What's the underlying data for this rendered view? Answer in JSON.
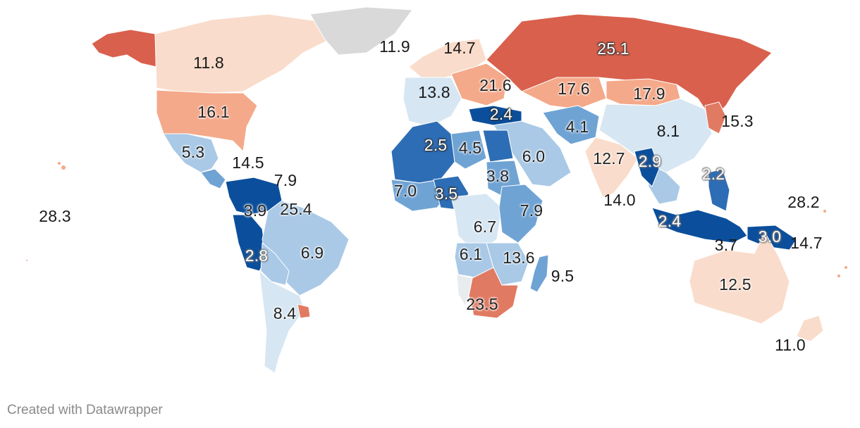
{
  "palette": {
    "blue_darkest": "#0b4f9c",
    "blue_dark": "#2d6db5",
    "blue_mid": "#6fa3d4",
    "blue_light": "#a9c9e6",
    "blue_pale": "#d6e6f2",
    "grey_neutral": "#e8ecef",
    "salmon_pale": "#f9dccb",
    "salmon_light": "#f4a98a",
    "red_mid": "#e07a62",
    "red_dark": "#d9604d",
    "no_data": "#d9d9d9"
  },
  "regions": [
    {
      "name": "alaska",
      "color": "red_dark"
    },
    {
      "name": "canada",
      "color": "salmon_pale"
    },
    {
      "name": "greenland",
      "color": "no_data"
    },
    {
      "name": "usa",
      "color": "salmon_light"
    },
    {
      "name": "mexico",
      "color": "blue_light"
    },
    {
      "name": "central-america",
      "color": "blue_mid"
    },
    {
      "name": "venezuela-colombia",
      "color": "blue_darkest"
    },
    {
      "name": "peru-ecuador",
      "color": "blue_darkest"
    },
    {
      "name": "brazil",
      "color": "blue_light"
    },
    {
      "name": "bolivia-paraguay",
      "color": "blue_light"
    },
    {
      "name": "argentina-chile",
      "color": "blue_pale"
    },
    {
      "name": "uruguay",
      "color": "red_mid"
    },
    {
      "name": "iceland-scandinavia",
      "color": "salmon_pale"
    },
    {
      "name": "western-europe",
      "color": "blue_pale"
    },
    {
      "name": "eastern-europe",
      "color": "salmon_light"
    },
    {
      "name": "russia",
      "color": "red_dark"
    },
    {
      "name": "kazakhstan",
      "color": "salmon_light"
    },
    {
      "name": "mongolia",
      "color": "salmon_light"
    },
    {
      "name": "china",
      "color": "blue_pale"
    },
    {
      "name": "korea-japan",
      "color": "red_mid"
    },
    {
      "name": "turkey",
      "color": "blue_darkest"
    },
    {
      "name": "middle-east",
      "color": "blue_light"
    },
    {
      "name": "iran-afghanistan",
      "color": "blue_mid"
    },
    {
      "name": "india",
      "color": "salmon_pale"
    },
    {
      "name": "southeast-asia",
      "color": "blue_light"
    },
    {
      "name": "myanmar",
      "color": "blue_darkest"
    },
    {
      "name": "philippines",
      "color": "blue_dark"
    },
    {
      "name": "indonesia",
      "color": "blue_darkest"
    },
    {
      "name": "png",
      "color": "blue_darkest"
    },
    {
      "name": "australia",
      "color": "salmon_pale"
    },
    {
      "name": "new-zealand",
      "color": "salmon_pale"
    },
    {
      "name": "north-africa-west",
      "color": "blue_dark"
    },
    {
      "name": "libya",
      "color": "blue_mid"
    },
    {
      "name": "egypt",
      "color": "blue_dark"
    },
    {
      "name": "sudan",
      "color": "blue_mid"
    },
    {
      "name": "west-africa",
      "color": "blue_mid"
    },
    {
      "name": "nigeria",
      "color": "blue_dark"
    },
    {
      "name": "central-africa",
      "color": "blue_pale"
    },
    {
      "name": "east-africa",
      "color": "blue_mid"
    },
    {
      "name": "southern-central-africa",
      "color": "blue_light"
    },
    {
      "name": "mozambique-zambia",
      "color": "blue_light"
    },
    {
      "name": "southern-africa",
      "color": "red_mid"
    },
    {
      "name": "namibia",
      "color": "grey_neutral"
    },
    {
      "name": "madagascar",
      "color": "blue_mid"
    }
  ],
  "labels": [
    {
      "id": "canada",
      "text": "11.8",
      "style": "plain"
    },
    {
      "id": "greenland",
      "text": "11.9",
      "style": "plain"
    },
    {
      "id": "scandinavia",
      "text": "14.7",
      "style": "plain"
    },
    {
      "id": "russia",
      "text": "25.1",
      "style": "dark"
    },
    {
      "id": "western-europe",
      "text": "13.8",
      "style": "plain"
    },
    {
      "id": "eastern-europe",
      "text": "21.6",
      "style": "light"
    },
    {
      "id": "kazakhstan",
      "text": "17.6",
      "style": "light"
    },
    {
      "id": "mongolia",
      "text": "17.9",
      "style": "light"
    },
    {
      "id": "usa",
      "text": "16.1",
      "style": "light"
    },
    {
      "id": "turkey",
      "text": "2.4",
      "style": "dark"
    },
    {
      "id": "iran",
      "text": "4.1",
      "style": "light"
    },
    {
      "id": "japan",
      "text": "15.3",
      "style": "plain"
    },
    {
      "id": "china",
      "text": "8.1",
      "style": "plain"
    },
    {
      "id": "mexico",
      "text": "5.3",
      "style": "light"
    },
    {
      "id": "caribbean",
      "text": "14.5",
      "style": "plain"
    },
    {
      "id": "algeria",
      "text": "2.5",
      "style": "dark"
    },
    {
      "id": "libya",
      "text": "4.5",
      "style": "light"
    },
    {
      "id": "saudi",
      "text": "6.0",
      "style": "light"
    },
    {
      "id": "india",
      "text": "12.7",
      "style": "light"
    },
    {
      "id": "myanmar",
      "text": "2.9",
      "style": "grey"
    },
    {
      "id": "philippines",
      "text": "2.2",
      "style": "grey"
    },
    {
      "id": "dominican",
      "text": "7.9",
      "style": "plain"
    },
    {
      "id": "sudan",
      "text": "3.8",
      "style": "light"
    },
    {
      "id": "mali",
      "text": "7.0",
      "style": "light"
    },
    {
      "id": "nigeria",
      "text": "3.5",
      "style": "dark"
    },
    {
      "id": "sri-lanka",
      "text": "14.0",
      "style": "plain"
    },
    {
      "id": "pacific",
      "text": "28.2",
      "style": "plain"
    },
    {
      "id": "hawaii",
      "text": "28.3",
      "style": "plain"
    },
    {
      "id": "colombia",
      "text": "3.9",
      "style": "light"
    },
    {
      "id": "guyana",
      "text": "25.4",
      "style": "light"
    },
    {
      "id": "ethiopia",
      "text": "7.9",
      "style": "light"
    },
    {
      "id": "indonesia-west",
      "text": "2.4",
      "style": "grey"
    },
    {
      "id": "congo",
      "text": "6.7",
      "style": "light"
    },
    {
      "id": "timor",
      "text": "3.7",
      "style": "plain"
    },
    {
      "id": "png",
      "text": "3.0",
      "style": "grey"
    },
    {
      "id": "solomon",
      "text": "14.7",
      "style": "plain"
    },
    {
      "id": "peru",
      "text": "2.8",
      "style": "grey"
    },
    {
      "id": "brazil",
      "text": "6.9",
      "style": "light"
    },
    {
      "id": "angola",
      "text": "6.1",
      "style": "light"
    },
    {
      "id": "mozambique",
      "text": "13.6",
      "style": "light"
    },
    {
      "id": "madagascar",
      "text": "9.5",
      "style": "plain"
    },
    {
      "id": "australia",
      "text": "12.5",
      "style": "light"
    },
    {
      "id": "argentina",
      "text": "8.4",
      "style": "light"
    },
    {
      "id": "south-africa",
      "text": "23.5",
      "style": "light"
    },
    {
      "id": "new-zealand",
      "text": "11.0",
      "style": "plain"
    }
  ],
  "footer": {
    "credit": "Created with Datawrapper"
  }
}
